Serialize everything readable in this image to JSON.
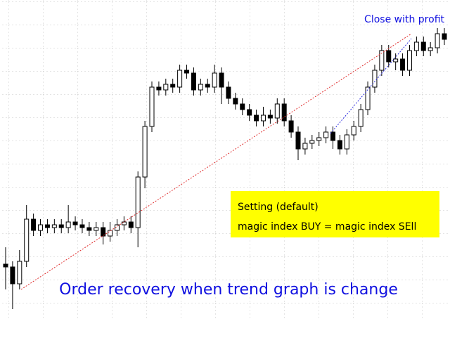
{
  "chart_data": {
    "type": "candlestick",
    "annotations": {
      "close": "Close with profit",
      "setting": "Setting (default)",
      "magic": "magic index BUY = magic index SEll",
      "caption": "Order recovery when trend graph is change"
    },
    "ylim": [
      0,
      115
    ],
    "up_color": "#ffffff",
    "down_color": "#000000",
    "open": [
      21,
      20,
      14,
      22,
      37,
      33,
      35,
      34,
      35,
      34,
      36,
      35,
      34,
      33,
      34,
      31,
      33,
      35,
      36,
      34,
      52,
      70,
      84,
      83,
      85,
      84,
      90,
      89,
      83,
      85,
      84,
      89,
      84,
      80,
      78,
      76,
      74,
      72,
      74,
      73,
      78,
      72,
      68,
      62,
      64,
      65,
      66,
      68,
      65,
      62,
      67,
      70,
      76,
      84,
      90,
      97,
      93,
      94,
      90,
      97,
      100,
      97,
      98,
      103
    ],
    "high": [
      27,
      22,
      26,
      42,
      39,
      37,
      37,
      37,
      37,
      42,
      38,
      37,
      36,
      36,
      36,
      36,
      37,
      38,
      38,
      54,
      72,
      86,
      86,
      87,
      87,
      92,
      92,
      91,
      87,
      87,
      92,
      91,
      86,
      82,
      80,
      78,
      76,
      77,
      76,
      80,
      80,
      74,
      70,
      66,
      67,
      68,
      70,
      70,
      67,
      69,
      72,
      78,
      86,
      92,
      99,
      99,
      96,
      96,
      99,
      102,
      102,
      100,
      105,
      105
    ],
    "low": [
      12,
      5,
      12,
      20,
      31,
      31,
      32,
      32,
      32,
      32,
      33,
      32,
      31,
      31,
      28,
      29,
      31,
      33,
      32,
      27,
      48,
      68,
      81,
      81,
      82,
      82,
      87,
      81,
      81,
      82,
      82,
      78,
      78,
      76,
      74,
      72,
      70,
      70,
      71,
      71,
      70,
      66,
      58,
      60,
      62,
      63,
      64,
      62,
      60,
      60,
      65,
      68,
      74,
      82,
      88,
      91,
      90,
      88,
      88,
      95,
      95,
      95,
      96,
      99
    ],
    "close": [
      20,
      14,
      22,
      37,
      33,
      35,
      34,
      35,
      34,
      36,
      35,
      34,
      33,
      34,
      31,
      33,
      35,
      36,
      34,
      52,
      70,
      84,
      83,
      85,
      84,
      90,
      89,
      83,
      85,
      84,
      89,
      84,
      80,
      78,
      76,
      74,
      72,
      74,
      73,
      78,
      72,
      68,
      62,
      64,
      65,
      66,
      68,
      65,
      62,
      67,
      70,
      76,
      84,
      90,
      97,
      93,
      94,
      90,
      97,
      100,
      97,
      98,
      103,
      101
    ]
  }
}
